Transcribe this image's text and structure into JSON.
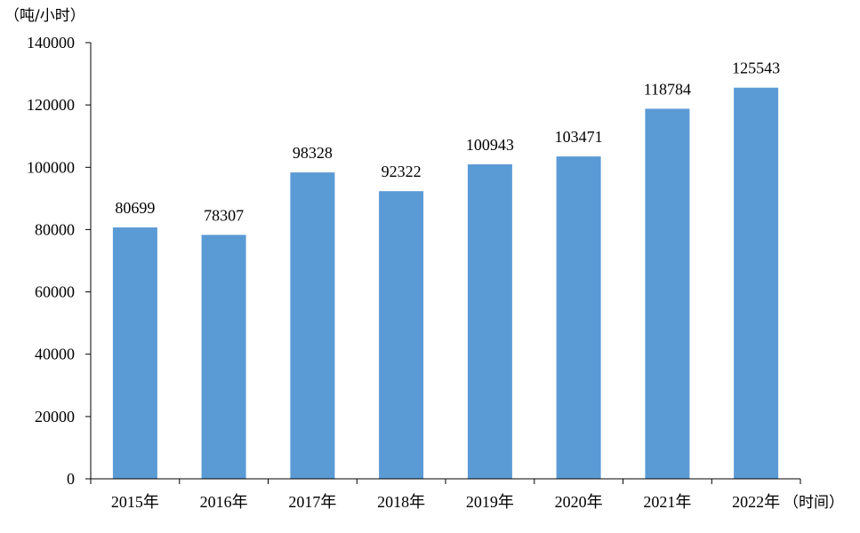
{
  "chart_data": {
    "type": "bar",
    "categories": [
      "2015年",
      "2016年",
      "2017年",
      "2018年",
      "2019年",
      "2020年",
      "2021年",
      "2022年"
    ],
    "values": [
      80699,
      78307,
      98328,
      92322,
      100943,
      103471,
      118784,
      125543
    ],
    "ylabel": "（吨/小时）",
    "xlabel": "（时间）",
    "ylim": [
      0,
      140000
    ],
    "yticks": [
      0,
      20000,
      40000,
      60000,
      80000,
      100000,
      120000,
      140000
    ],
    "bar_color": "#5b9bd5",
    "axis_color": "#000000",
    "grid": false,
    "legend": "none"
  }
}
